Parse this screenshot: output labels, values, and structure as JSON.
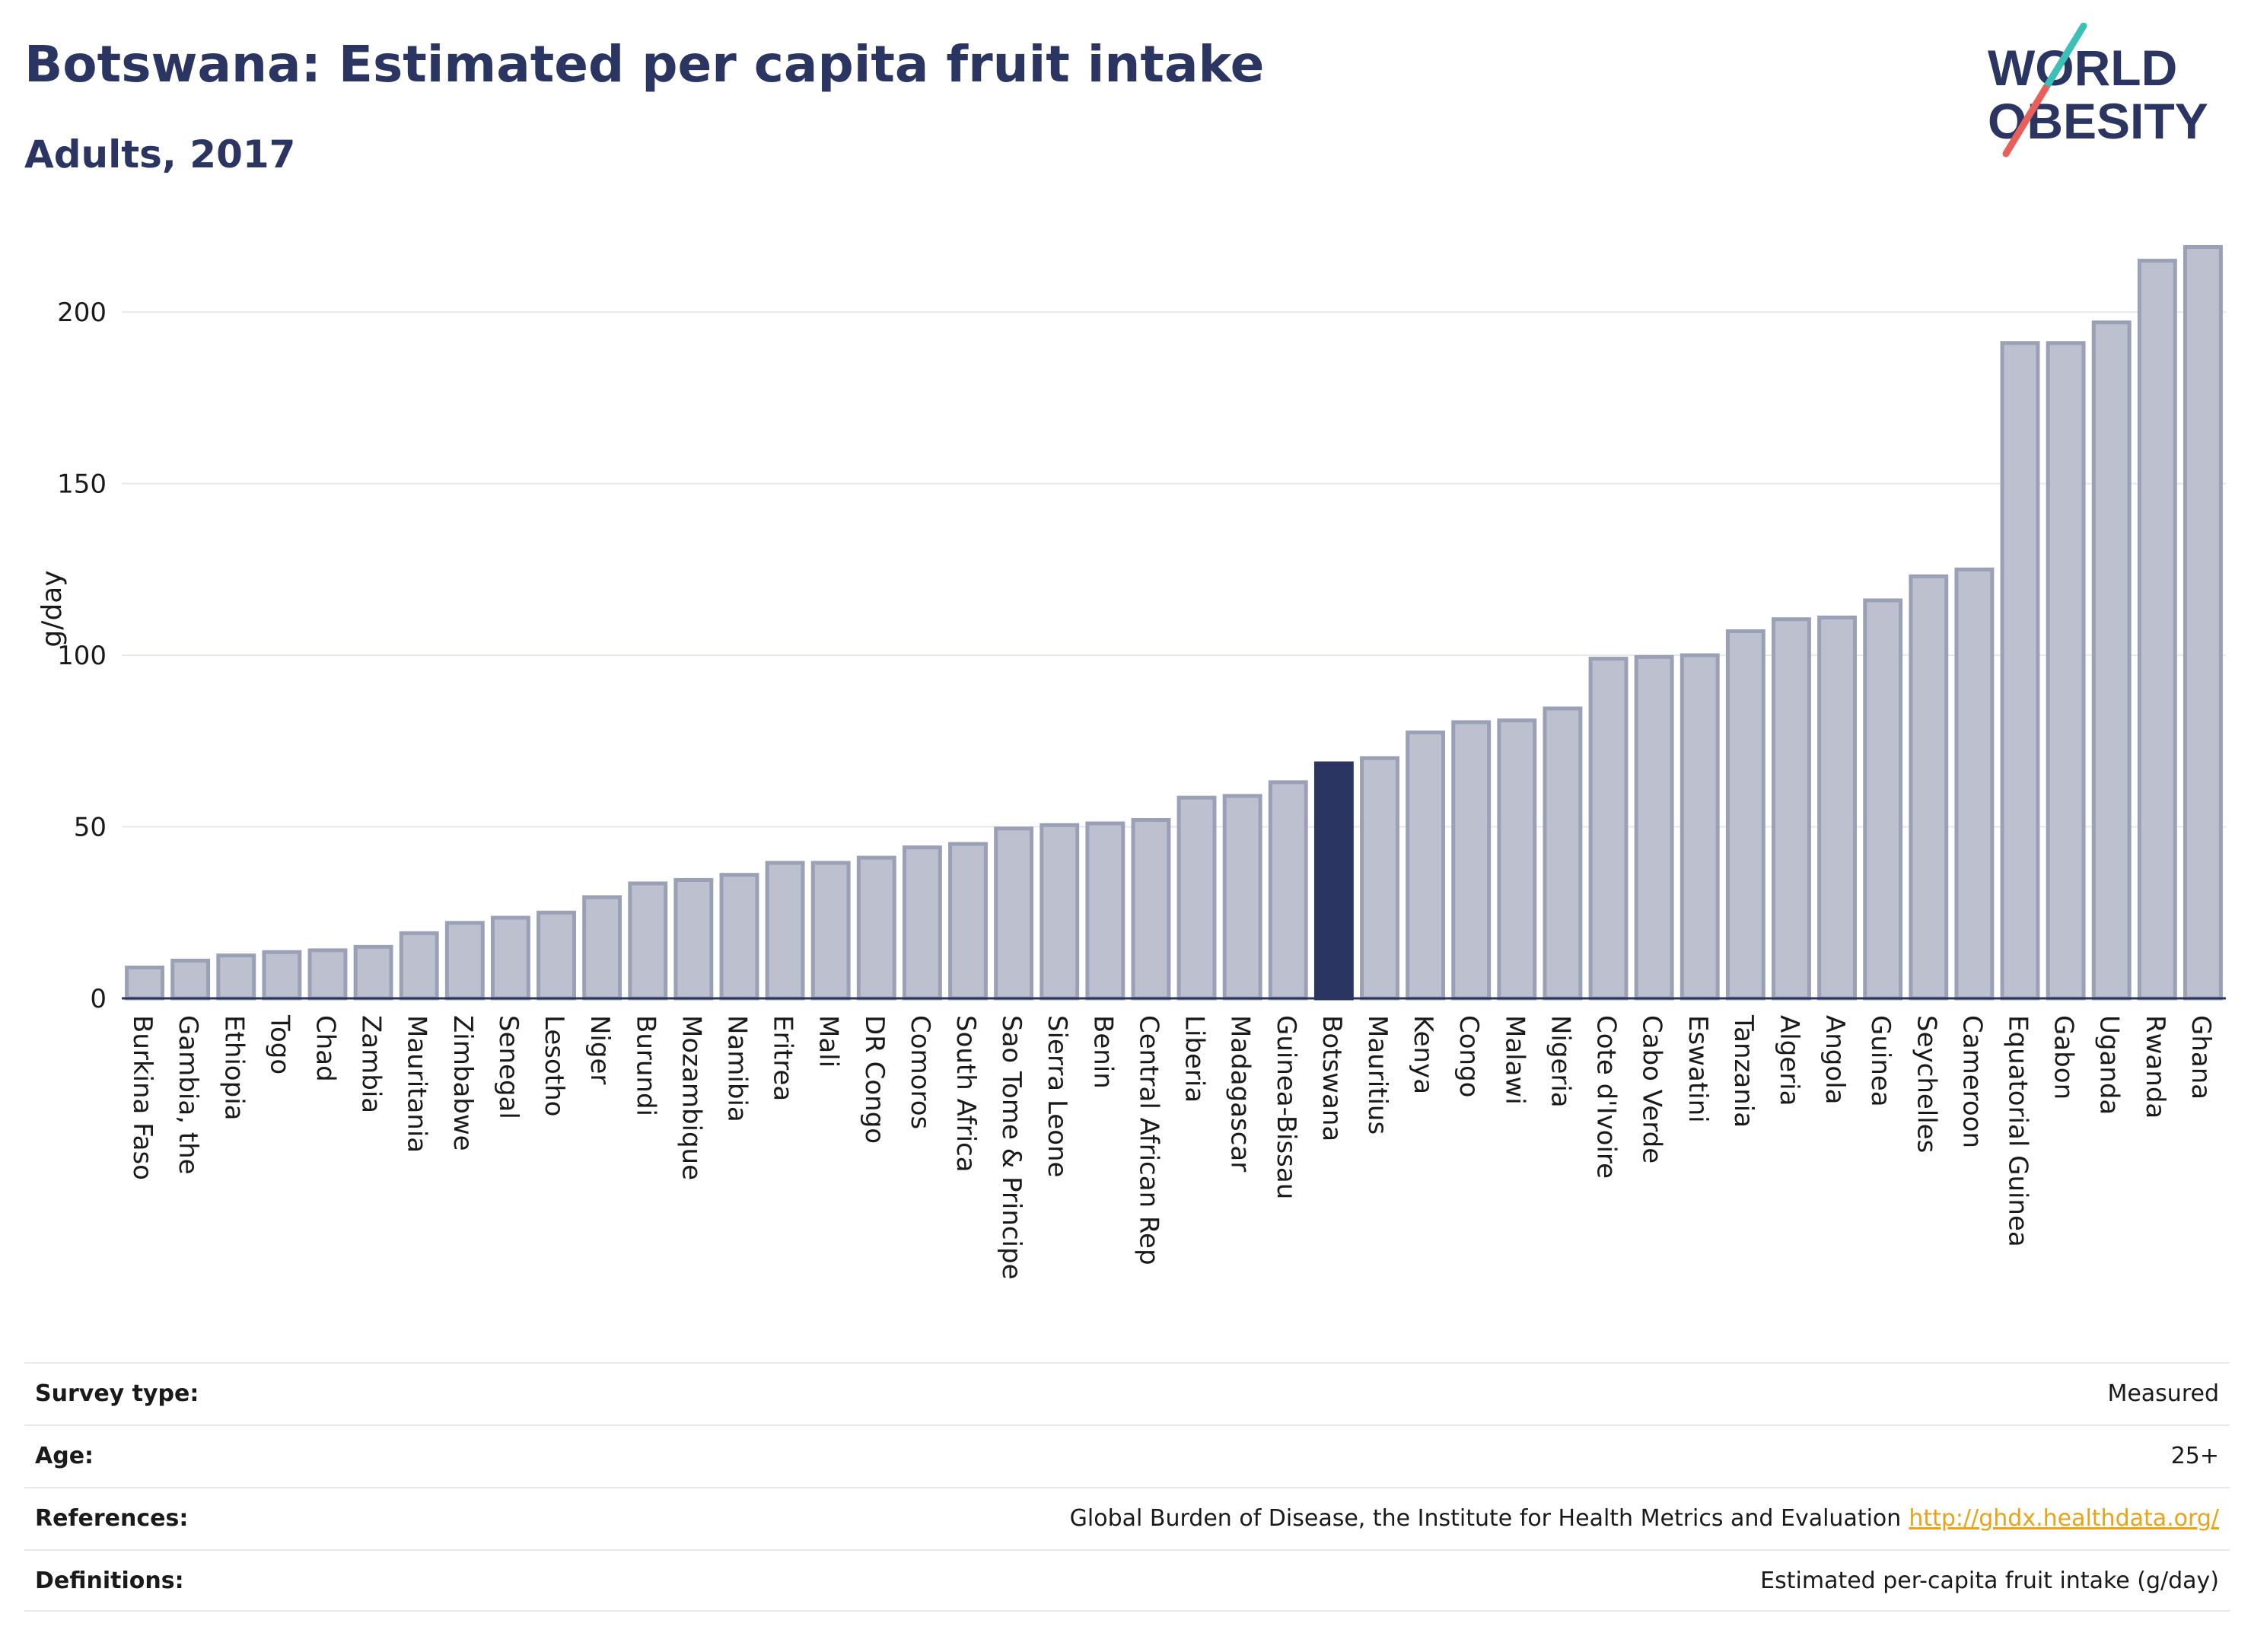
{
  "header": {
    "title": "Botswana: Estimated per capita fruit intake",
    "subtitle": "Adults, 2017"
  },
  "logo": {
    "line1": "WORLD",
    "line2": "OBESITY"
  },
  "colors": {
    "bar_default": "#bcc0cf",
    "bar_border": "#9aa0b6",
    "bar_highlight": "#2b3561",
    "grid": "#e6e8ef",
    "text": "#2b3561",
    "link": "#e8a317",
    "logo_teal": "#3cbfb6",
    "logo_red": "#e8605c"
  },
  "chart_data": {
    "type": "bar",
    "ylabel": "g/day",
    "ylim": [
      0,
      220
    ],
    "yticks": [
      0,
      50,
      100,
      150,
      200
    ],
    "grid": true,
    "highlight": "Botswana",
    "categories": [
      "Burkina Faso",
      "Gambia, the",
      "Ethiopia",
      "Togo",
      "Chad",
      "Zambia",
      "Mauritania",
      "Zimbabwe",
      "Senegal",
      "Lesotho",
      "Niger",
      "Burundi",
      "Mozambique",
      "Namibia",
      "Eritrea",
      "Mali",
      "DR Congo",
      "Comoros",
      "South Africa",
      "Sao Tome & Principe",
      "Sierra Leone",
      "Benin",
      "Central African Rep",
      "Liberia",
      "Madagascar",
      "Guinea-Bissau",
      "Botswana",
      "Mauritius",
      "Kenya",
      "Congo",
      "Malawi",
      "Nigeria",
      "Cote d'Ivoire",
      "Cabo Verde",
      "Eswatini",
      "Tanzania",
      "Algeria",
      "Angola",
      "Guinea",
      "Seychelles",
      "Cameroon",
      "Equatorial Guinea",
      "Gabon",
      "Uganda",
      "Rwanda",
      "Ghana"
    ],
    "values": [
      9,
      11,
      12.5,
      13.5,
      14,
      15,
      19,
      22,
      23.5,
      25,
      29.5,
      33.5,
      34.5,
      36,
      39.5,
      39.5,
      41,
      44,
      45,
      49.5,
      50.5,
      51,
      52,
      58.5,
      59,
      63,
      68.5,
      70,
      77.5,
      80.5,
      81,
      84.5,
      99,
      99.5,
      100,
      107,
      110.5,
      111,
      116,
      123,
      125,
      191,
      191,
      197,
      215,
      219
    ]
  },
  "info": [
    {
      "label": "Survey type:",
      "value": "Measured"
    },
    {
      "label": "Age:",
      "value": "25+"
    },
    {
      "label": "References:",
      "value": "Global Burden of Disease, the Institute for Health Metrics and Evaluation",
      "link": "http://ghdx.healthdata.org/"
    },
    {
      "label": "Definitions:",
      "value": "Estimated per-capita fruit intake (g/day)"
    }
  ]
}
